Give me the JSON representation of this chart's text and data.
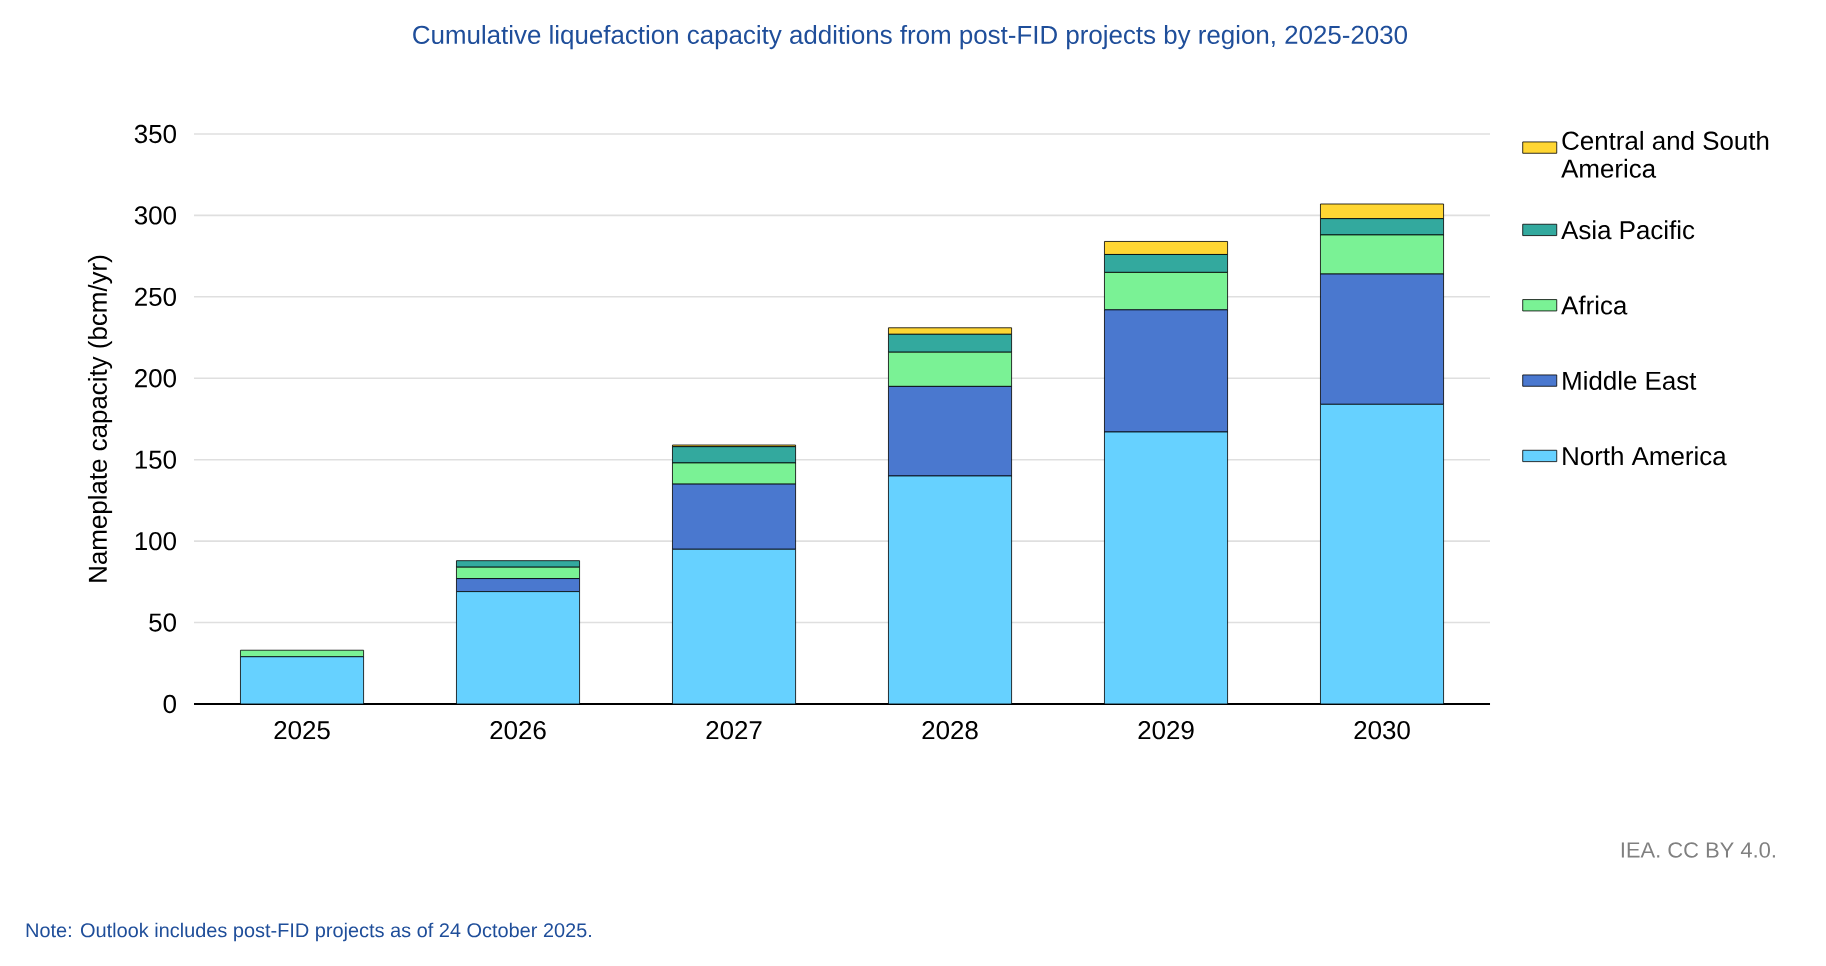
{
  "chart_data": {
    "type": "bar",
    "title": "Cumulative liquefaction capacity additions from post-FID projects by region, 2025-2030",
    "ylabel": "Nameplate capacity (bcm/yr)",
    "categories": [
      "2025",
      "2026",
      "2027",
      "2028",
      "2029",
      "2030"
    ],
    "stacked": true,
    "ylim": [
      0,
      350
    ],
    "yticks": [
      0,
      50,
      100,
      150,
      200,
      250,
      300,
      350
    ],
    "grid": "y",
    "legend": "right",
    "series": [
      {
        "name": "North America",
        "color": "#66d1ff",
        "values": [
          29,
          69,
          95,
          140,
          167,
          184
        ]
      },
      {
        "name": "Middle East",
        "color": "#4a78cf",
        "values": [
          0,
          8,
          40,
          55,
          75,
          80
        ]
      },
      {
        "name": "Africa",
        "color": "#7af295",
        "values": [
          4,
          7,
          13,
          21,
          23,
          24
        ]
      },
      {
        "name": "Asia Pacific",
        "color": "#33a99e",
        "values": [
          0,
          4,
          10,
          11,
          11,
          10
        ]
      },
      {
        "name": "Central and South America",
        "color": "#ffd633",
        "values": [
          0,
          0,
          1,
          4,
          8,
          9
        ]
      }
    ],
    "annotations": [
      "IEA. CC BY 4.0.",
      "Note: Outlook includes post-FID projects as of 24 October 2025."
    ]
  }
}
